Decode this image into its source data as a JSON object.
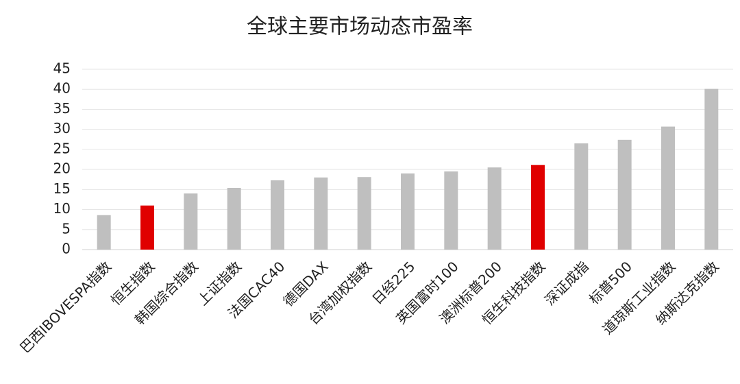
{
  "chart_data": {
    "type": "bar",
    "title": "全球主要市场动态市盈率",
    "categories": [
      "巴西IBOVESPA指数",
      "恒生指数",
      "韩国综合指数",
      "上证指数",
      "法国CAC40",
      "德国DAX",
      "台湾加权指数",
      "日经225",
      "英国富时100",
      "澳洲标普200",
      "恒生科技指数",
      "深证成指",
      "标普500",
      "道琼斯工业指数",
      "纳斯达克指数"
    ],
    "values": [
      8.6,
      11.0,
      14.0,
      15.4,
      17.3,
      18.0,
      18.1,
      19.0,
      19.5,
      20.5,
      21.1,
      26.5,
      27.4,
      30.7,
      40.1
    ],
    "colors": [
      "#bfbfbf",
      "#e00000",
      "#bfbfbf",
      "#bfbfbf",
      "#bfbfbf",
      "#bfbfbf",
      "#bfbfbf",
      "#bfbfbf",
      "#bfbfbf",
      "#bfbfbf",
      "#e00000",
      "#bfbfbf",
      "#bfbfbf",
      "#bfbfbf",
      "#bfbfbf"
    ],
    "ylim": [
      0,
      45
    ],
    "yticks": [
      0,
      5,
      10,
      15,
      20,
      25,
      30,
      35,
      40,
      45
    ],
    "grid": true
  }
}
